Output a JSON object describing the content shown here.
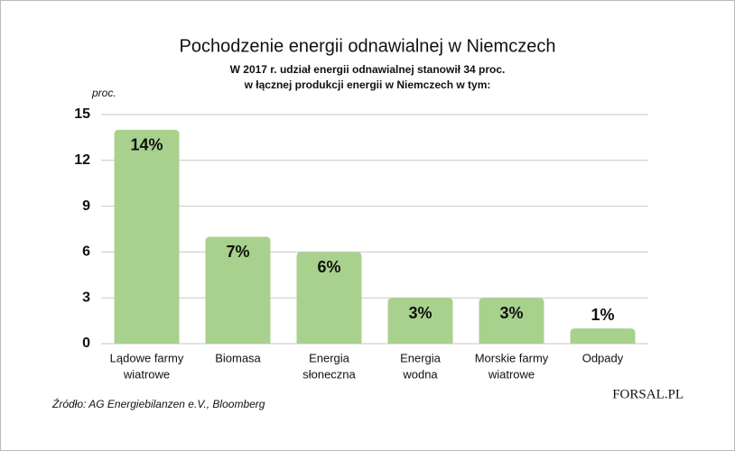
{
  "chart_data": {
    "type": "bar",
    "title": "Pochodzenie energii odnawialnej w Niemczech",
    "subtitle": [
      "W 2017 r. udział energii odnawialnej stanowił 34 proc.",
      "w łącznej produkcji energii w Niemczech w tym:"
    ],
    "y_label": "proc.",
    "categories": [
      [
        "Lądowe farmy",
        "wiatrowe"
      ],
      [
        "Biomasa"
      ],
      [
        "Energia",
        "słoneczna"
      ],
      [
        "Energia",
        "wodna"
      ],
      [
        "Morskie farmy",
        "wiatrowe"
      ],
      [
        "Odpady"
      ]
    ],
    "values": [
      14,
      7,
      6,
      3,
      3,
      1
    ],
    "value_labels": [
      "14%",
      "7%",
      "6%",
      "3%",
      "3%",
      "1%"
    ],
    "color": "#a9d18e",
    "ylim": [
      0,
      15
    ],
    "yticks": [
      0,
      3,
      6,
      9,
      12,
      15
    ],
    "grid": true,
    "source": "Źródło: AG Energiebilanzen e.V., Bloomberg",
    "logo": "FORSAL.PL"
  }
}
